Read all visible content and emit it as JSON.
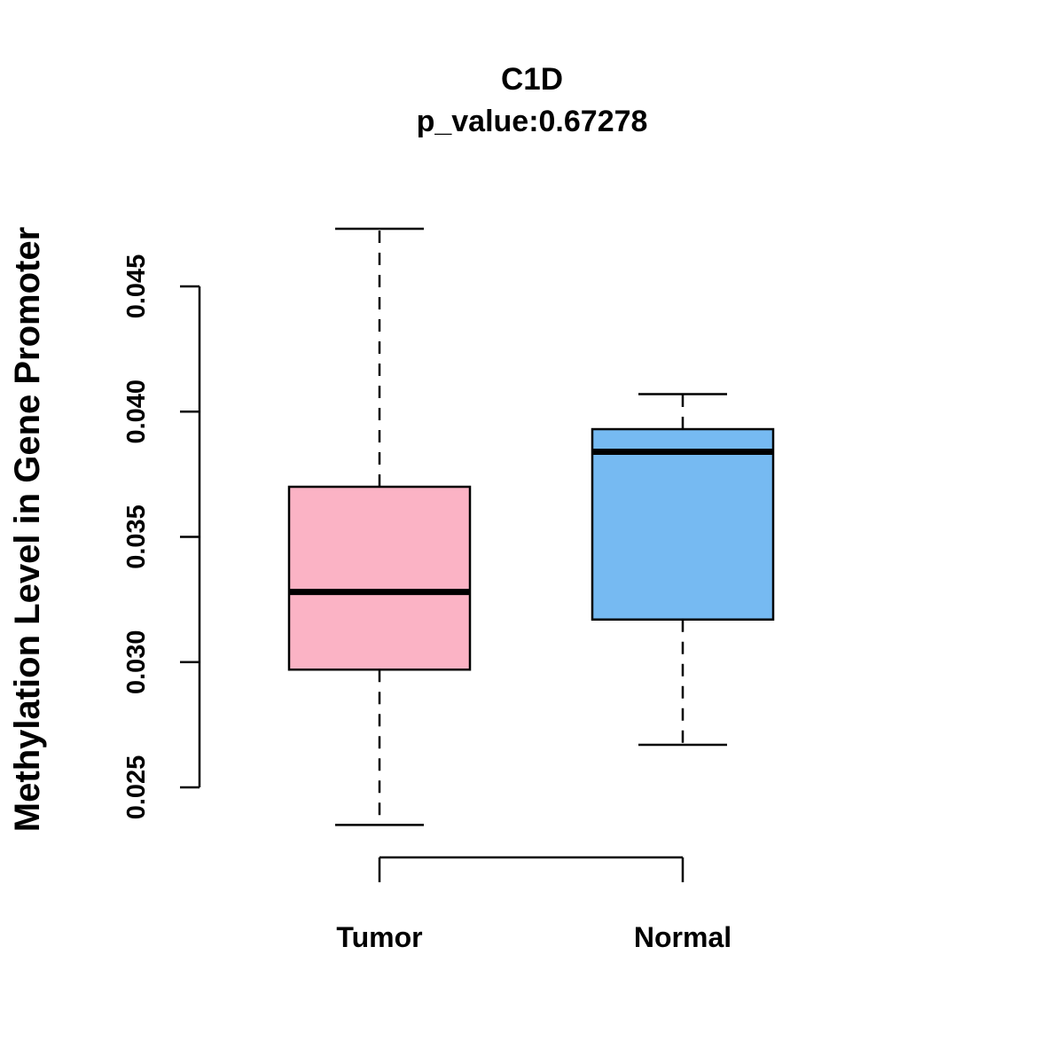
{
  "chart_data": {
    "type": "boxplot",
    "title": "C1D",
    "subtitle": "p_value:0.67278",
    "ylabel": "Methylation Level in Gene Promoter",
    "xlabel": "",
    "y_axis": {
      "min": 0.025,
      "max": 0.045,
      "ticks": [
        0.025,
        0.03,
        0.035,
        0.04,
        0.045
      ],
      "tick_labels": [
        "0.025",
        "0.030",
        "0.035",
        "0.040",
        "0.045"
      ]
    },
    "categories": [
      "Tumor",
      "Normal"
    ],
    "series": [
      {
        "name": "Tumor",
        "color": "#FBB3C5",
        "border_color": "#000000",
        "whisker_low": 0.0235,
        "q1": 0.0297,
        "median": 0.0328,
        "q3": 0.037,
        "whisker_high": 0.0473
      },
      {
        "name": "Normal",
        "color": "#76BAF2",
        "border_color": "#000000",
        "whisker_low": 0.0267,
        "q1": 0.0317,
        "median": 0.0384,
        "q3": 0.0393,
        "whisker_high": 0.0407
      }
    ],
    "axis_color": "#000000",
    "grid": false,
    "legend": "none"
  }
}
